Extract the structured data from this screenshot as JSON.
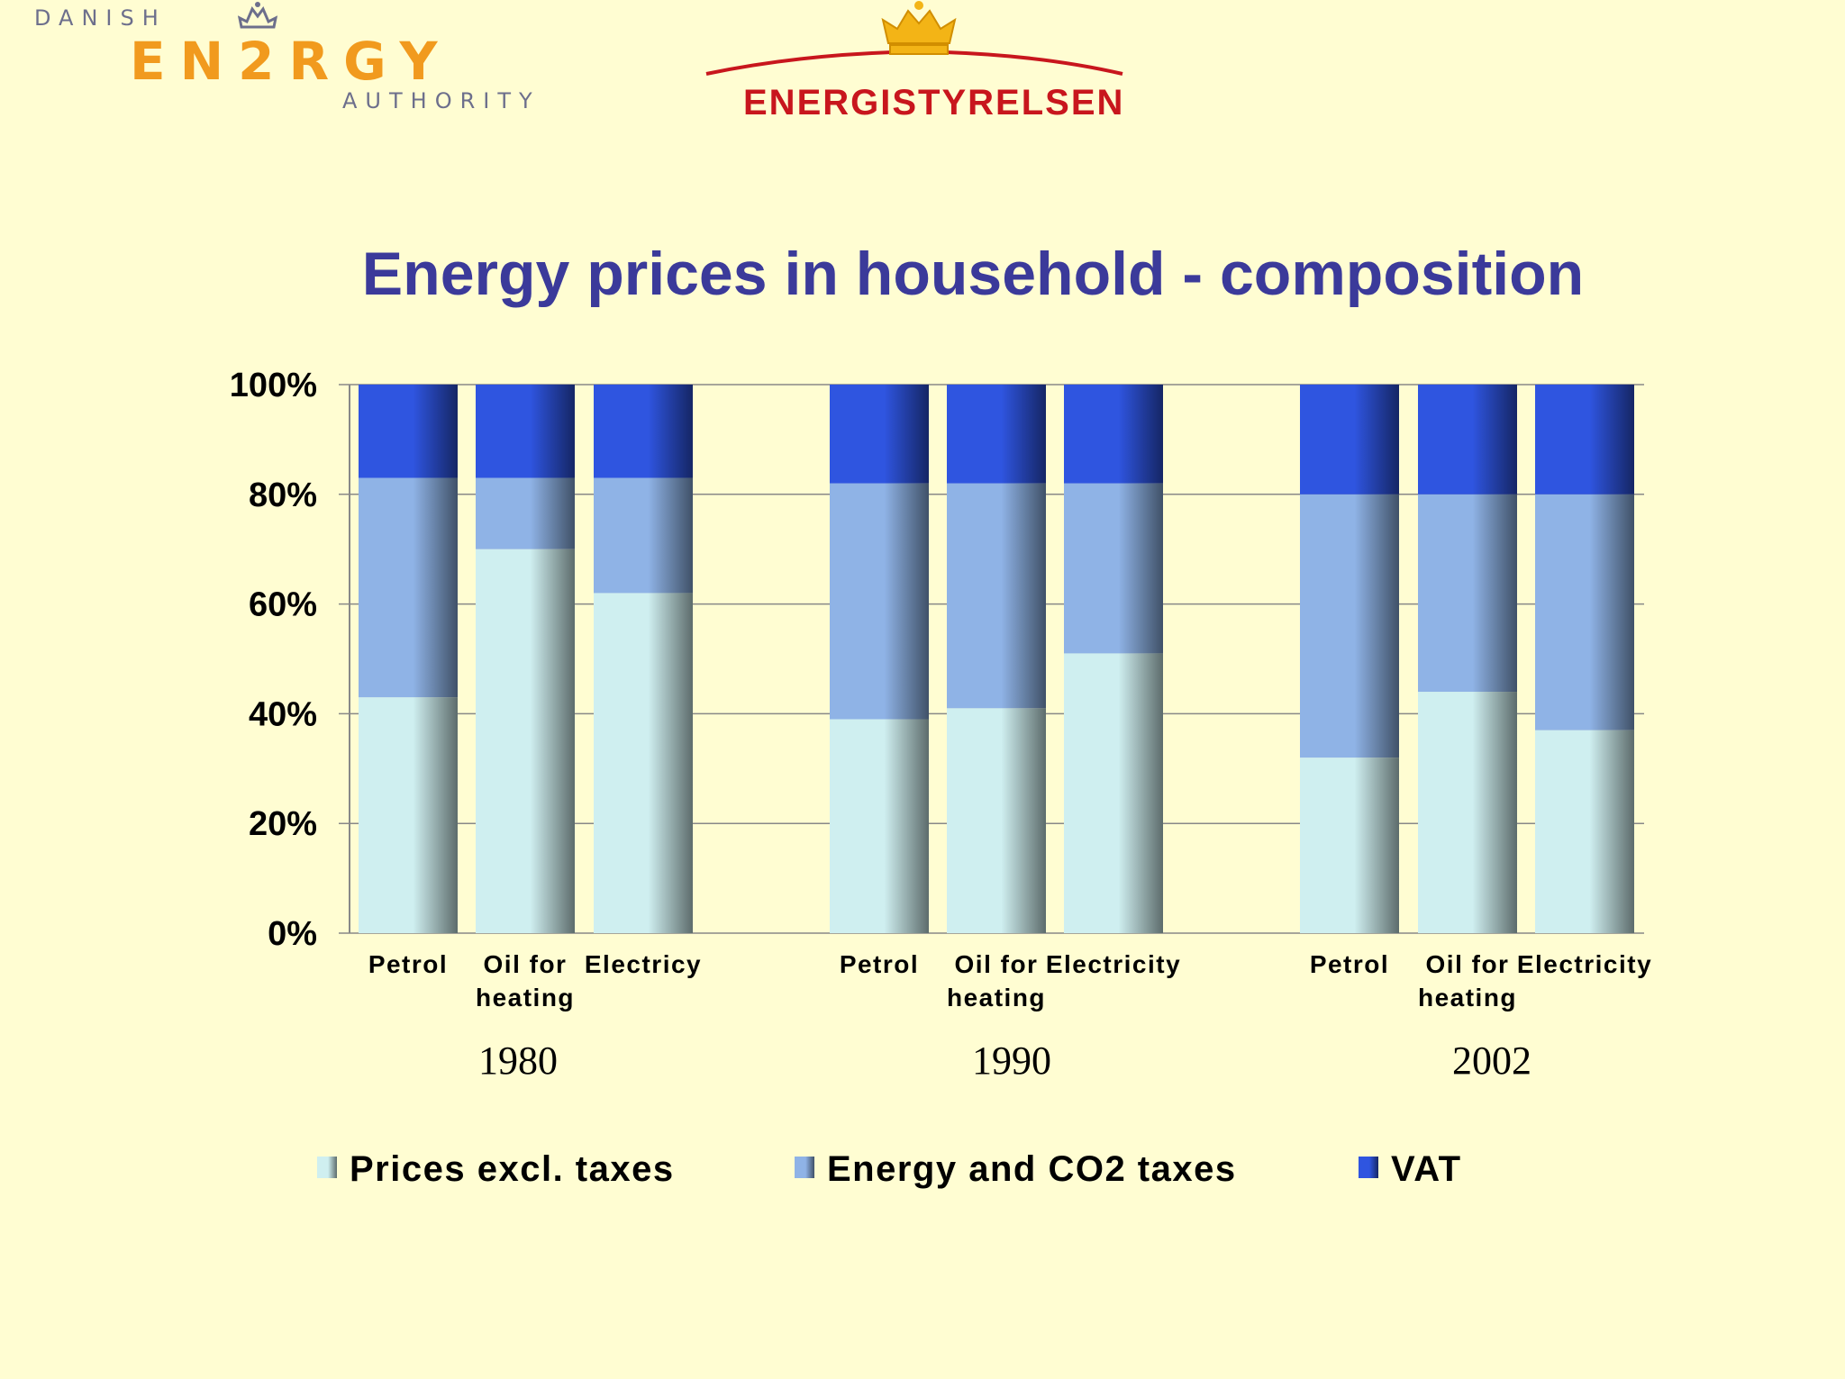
{
  "logos": {
    "left": {
      "small_top": "DANISH",
      "big": "EN2RGY",
      "small_bottom": "AUTHORITY"
    },
    "right": {
      "text": "ENERGISTYRELSEN"
    }
  },
  "chart_data": {
    "type": "bar",
    "stacked": true,
    "percent": true,
    "title": "Energy prices in household - composition",
    "ylim": [
      0,
      100
    ],
    "yticks": [
      "0%",
      "20%",
      "40%",
      "60%",
      "80%",
      "100%"
    ],
    "grid": true,
    "legend_position": "bottom",
    "groups": [
      {
        "label": "1980",
        "categories": [
          [
            "Petrol"
          ],
          [
            "Oil for",
            "heating"
          ],
          [
            "Electricy"
          ]
        ]
      },
      {
        "label": "1990",
        "categories": [
          [
            "Petrol"
          ],
          [
            "Oil for",
            "heating"
          ],
          [
            "Electricity"
          ]
        ]
      },
      {
        "label": "2002",
        "categories": [
          [
            "Petrol"
          ],
          [
            "Oil for",
            "heating"
          ],
          [
            "Electricity"
          ]
        ]
      }
    ],
    "series": [
      {
        "name": "Prices excl. taxes",
        "color": "#cfeff0",
        "values": [
          43,
          70,
          62,
          39,
          41,
          51,
          32,
          44,
          37
        ]
      },
      {
        "name": "Energy and CO2 taxes",
        "color": "#8fb3e6",
        "values": [
          40,
          13,
          21,
          43,
          41,
          31,
          48,
          36,
          43
        ]
      },
      {
        "name": "VAT",
        "color": "#2f55e0",
        "values": [
          17,
          17,
          17,
          18,
          18,
          18,
          20,
          20,
          20
        ]
      }
    ]
  }
}
